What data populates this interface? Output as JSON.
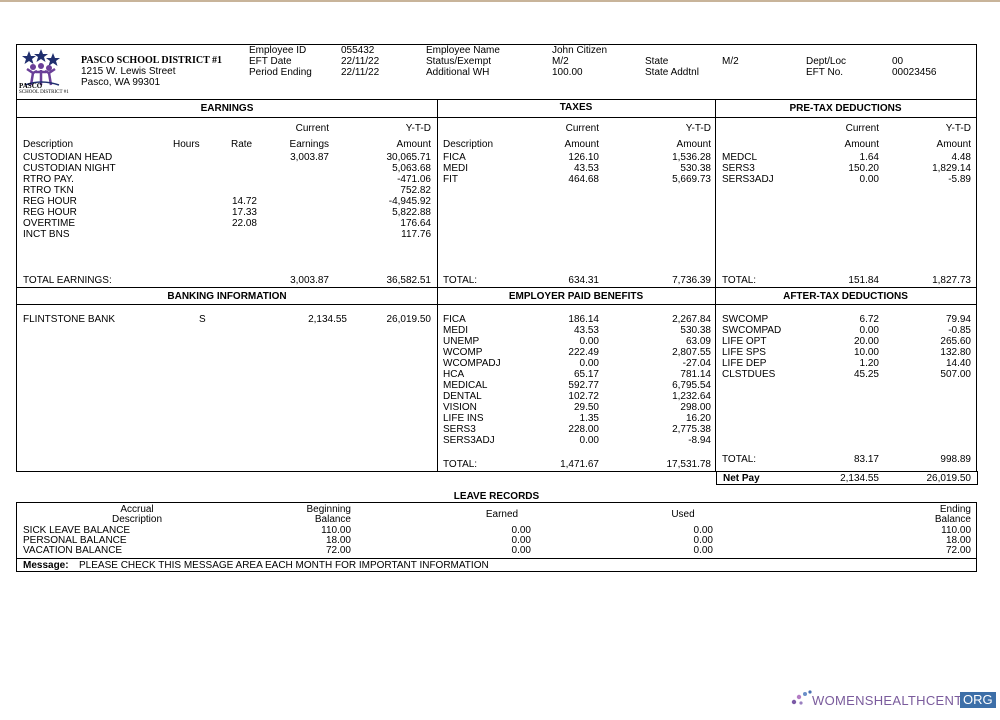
{
  "company": {
    "name": "PASCO SCHOOL DISTRICT #1",
    "address1": "1215 W. Lewis Street",
    "address2": "Pasco, WA 99301",
    "logo_text1": "PASCO",
    "logo_text2": "SCHOOL DISTRICT #1"
  },
  "header": {
    "employee_id_label": "Employee ID",
    "employee_id": "055432",
    "eft_date_label": "EFT Date",
    "eft_date": "22/11/22",
    "period_ending_label": "Period Ending",
    "period_ending": "22/11/22",
    "employee_name_label": "Employee Name",
    "employee_name": "John Citizen",
    "status_label": "Status/Exempt",
    "status": "M/2",
    "additional_wh_label": "Additional WH",
    "additional_wh": "100.00",
    "state_label": "State",
    "state": "M/2",
    "state_addtnl_label": "State Addtnl",
    "dept_label": "Dept/Loc",
    "dept": "00",
    "eft_no_label": "EFT No.",
    "eft_no": "00023456"
  },
  "earnings": {
    "title": "EARNINGS",
    "col_description": "Description",
    "col_hours": "Hours",
    "col_rate": "Rate",
    "col_current_1": "Current",
    "col_current_2": "Earnings",
    "col_ytd_1": "Y-T-D",
    "col_ytd_2": "Amount",
    "rows": [
      {
        "desc": "CUSTODIAN HEAD",
        "rate": "",
        "current": "3,003.87",
        "ytd": "30,065.71"
      },
      {
        "desc": "CUSTODIAN NIGHT",
        "rate": "",
        "current": "",
        "ytd": "5,063.68"
      },
      {
        "desc": "RTRO PAY.",
        "rate": "",
        "current": "",
        "ytd": "-471.06"
      },
      {
        "desc": "RTRO TKN",
        "rate": "",
        "current": "",
        "ytd": "752.82"
      },
      {
        "desc": "REG HOUR",
        "rate": "14.72",
        "current": "",
        "ytd": "-4,945.92"
      },
      {
        "desc": "REG HOUR",
        "rate": "17.33",
        "current": "",
        "ytd": "5,822.88"
      },
      {
        "desc": "OVERTIME",
        "rate": "22.08",
        "current": "",
        "ytd": "176.64"
      },
      {
        "desc": "INCT BNS",
        "rate": "",
        "current": "",
        "ytd": "117.76"
      }
    ],
    "total_label": "TOTAL EARNINGS:",
    "total_current": "3,003.87",
    "total_ytd": "36,582.51"
  },
  "taxes": {
    "title": "TAXES",
    "col_description": "Description",
    "col_current_1": "Current",
    "col_current_2": "Amount",
    "col_ytd_1": "Y-T-D",
    "col_ytd_2": "Amount",
    "rows": [
      {
        "desc": "FICA",
        "current": "126.10",
        "ytd": "1,536.28"
      },
      {
        "desc": "MEDI",
        "current": "43.53",
        "ytd": "530.38"
      },
      {
        "desc": "FIT",
        "current": "464.68",
        "ytd": "5,669.73"
      }
    ],
    "total_label": "TOTAL:",
    "total_current": "634.31",
    "total_ytd": "7,736.39"
  },
  "pretax": {
    "title": "PRE-TAX DEDUCTIONS",
    "col_current_1": "Current",
    "col_current_2": "Amount",
    "col_ytd_1": "Y-T-D",
    "col_ytd_2": "Amount",
    "rows": [
      {
        "desc": "MEDCL",
        "current": "1.64",
        "ytd": "4.48"
      },
      {
        "desc": "SERS3",
        "current": "150.20",
        "ytd": "1,829.14"
      },
      {
        "desc": "SERS3ADJ",
        "current": "0.00",
        "ytd": "-5.89"
      }
    ],
    "total_label": "TOTAL:",
    "total_current": "151.84",
    "total_ytd": "1,827.73"
  },
  "banking": {
    "title": "BANKING INFORMATION",
    "bank": "FLINTSTONE BANK",
    "type": "S",
    "current": "2,134.55",
    "ytd": "26,019.50"
  },
  "employer": {
    "title": "EMPLOYER PAID BENEFITS",
    "rows": [
      {
        "desc": "FICA",
        "current": "186.14",
        "ytd": "2,267.84"
      },
      {
        "desc": "MEDI",
        "current": "43.53",
        "ytd": "530.38"
      },
      {
        "desc": "UNEMP",
        "current": "0.00",
        "ytd": "63.09"
      },
      {
        "desc": "WCOMP",
        "current": "222.49",
        "ytd": "2,807.55"
      },
      {
        "desc": "WCOMPADJ",
        "current": "0.00",
        "ytd": "-27.04"
      },
      {
        "desc": "HCA",
        "current": "65.17",
        "ytd": "781.14"
      },
      {
        "desc": "MEDICAL",
        "current": "592.77",
        "ytd": "6,795.54"
      },
      {
        "desc": "DENTAL",
        "current": "102.72",
        "ytd": "1,232.64"
      },
      {
        "desc": "VISION",
        "current": "29.50",
        "ytd": "298.00"
      },
      {
        "desc": "LIFE INS",
        "current": "1.35",
        "ytd": "16.20"
      },
      {
        "desc": "SERS3",
        "current": "228.00",
        "ytd": "2,775.38"
      },
      {
        "desc": "SERS3ADJ",
        "current": "0.00",
        "ytd": "-8.94"
      }
    ],
    "total_label": "TOTAL:",
    "total_current": "1,471.67",
    "total_ytd": "17,531.78"
  },
  "aftertax": {
    "title": "AFTER-TAX DEDUCTIONS",
    "rows": [
      {
        "desc": "SWCOMP",
        "current": "6.72",
        "ytd": "79.94"
      },
      {
        "desc": "SWCOMPAD",
        "current": "0.00",
        "ytd": "-0.85"
      },
      {
        "desc": "LIFE OPT",
        "current": "20.00",
        "ytd": "265.60"
      },
      {
        "desc": "LIFE SPS",
        "current": "10.00",
        "ytd": "132.80"
      },
      {
        "desc": "LIFE DEP",
        "current": "1.20",
        "ytd": "14.40"
      },
      {
        "desc": "CLSTDUES",
        "current": "45.25",
        "ytd": "507.00"
      }
    ],
    "total_label": "TOTAL:",
    "total_current": "83.17",
    "total_ytd": "998.89"
  },
  "netpay": {
    "label": "Net Pay",
    "current": "2,134.55",
    "ytd": "26,019.50"
  },
  "leave": {
    "title": "LEAVE RECORDS",
    "col_accrual_1": "Accrual",
    "col_accrual_2": "Description",
    "col_begin_1": "Beginning",
    "col_begin_2": "Balance",
    "col_earned": "Earned",
    "col_used": "Used",
    "col_end_1": "Ending",
    "col_end_2": "Balance",
    "rows": [
      {
        "desc": "SICK LEAVE BALANCE",
        "begin": "110.00",
        "earned": "0.00",
        "used": "0.00",
        "end": "110.00"
      },
      {
        "desc": "PERSONAL BALANCE",
        "begin": "18.00",
        "earned": "0.00",
        "used": "0.00",
        "end": "18.00"
      },
      {
        "desc": "VACATION BALANCE",
        "begin": "72.00",
        "earned": "0.00",
        "used": "0.00",
        "end": "72.00"
      }
    ],
    "message_label": "Message:",
    "message": "PLEASE CHECK THIS MESSAGE AREA EACH MONTH FOR IMPORTANT INFORMATION"
  },
  "watermark": {
    "text": "WOMENSHEALTHCENTER",
    "tld": "ORG"
  }
}
